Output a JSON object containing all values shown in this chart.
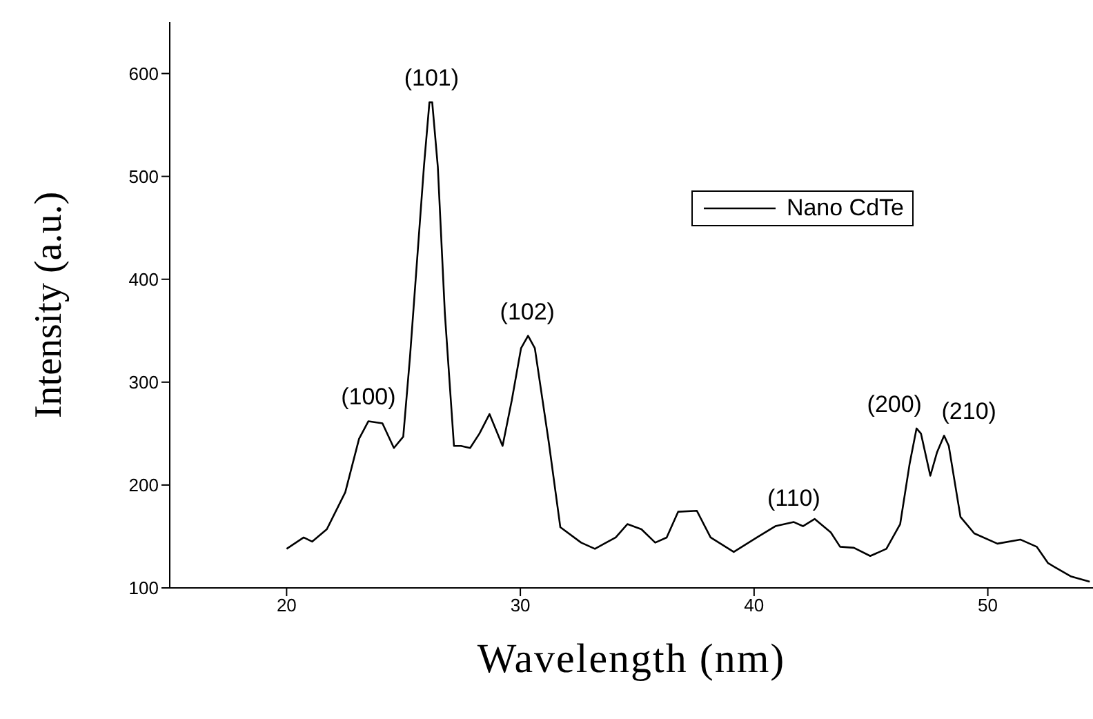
{
  "chart_data": {
    "type": "line",
    "xlabel": "Wavelength (nm)",
    "ylabel": "Intensity (a.u.)",
    "xlim": [
      15,
      54.5
    ],
    "xticks": [
      20,
      30,
      40,
      50
    ],
    "ylim": [
      100,
      650
    ],
    "yticks": [
      100,
      200,
      300,
      400,
      500,
      600
    ],
    "grid": false,
    "legend": "top right",
    "marker": "none",
    "line_style": "solid",
    "annotations": [
      {
        "text": "(100)",
        "x": 23.5,
        "y": 262
      },
      {
        "text": "(101)",
        "x": 26.2,
        "y": 572
      },
      {
        "text": "(102)",
        "x": 30.3,
        "y": 345
      },
      {
        "text": "(110)",
        "x": 41.7,
        "y": 164
      },
      {
        "text": "(200)",
        "x": 46.95,
        "y": 255
      },
      {
        "text": "(210)",
        "x": 48.13,
        "y": 248
      }
    ],
    "series": [
      {
        "name": "Nano CdTe",
        "color": "#000000",
        "x": [
          20.0,
          20.73,
          21.09,
          21.72,
          22.51,
          23.1,
          23.5,
          24.1,
          24.59,
          24.99,
          25.28,
          25.88,
          26.11,
          26.23,
          26.47,
          26.77,
          27.16,
          27.46,
          27.85,
          28.25,
          28.68,
          29.24,
          29.63,
          30.03,
          30.33,
          30.62,
          31.22,
          31.71,
          32.6,
          33.19,
          33.59,
          34.08,
          34.58,
          35.18,
          35.77,
          36.26,
          36.75,
          37.55,
          38.14,
          39.13,
          40.12,
          40.91,
          41.7,
          42.09,
          42.59,
          43.28,
          43.68,
          44.27,
          44.97,
          45.66,
          46.25,
          46.65,
          46.95,
          47.14,
          47.54,
          47.83,
          48.13,
          48.33,
          48.83,
          49.42,
          50.41,
          51.39,
          52.09,
          52.58,
          53.57,
          54.36
        ],
        "values": [
          138,
          149,
          145,
          157,
          193,
          245,
          262,
          260,
          236,
          247,
          325,
          511,
          572,
          572,
          509,
          367,
          238,
          238,
          236,
          250,
          269,
          238,
          282,
          333,
          345,
          333,
          241,
          159,
          144,
          138,
          143,
          149,
          162,
          157,
          144,
          149,
          174,
          175,
          149,
          135,
          149,
          160,
          164,
          160,
          167,
          154,
          140,
          139,
          131,
          138,
          162,
          220,
          255,
          250,
          209,
          232,
          248,
          238,
          169,
          153,
          143,
          147,
          140,
          124,
          111,
          106
        ]
      }
    ]
  }
}
